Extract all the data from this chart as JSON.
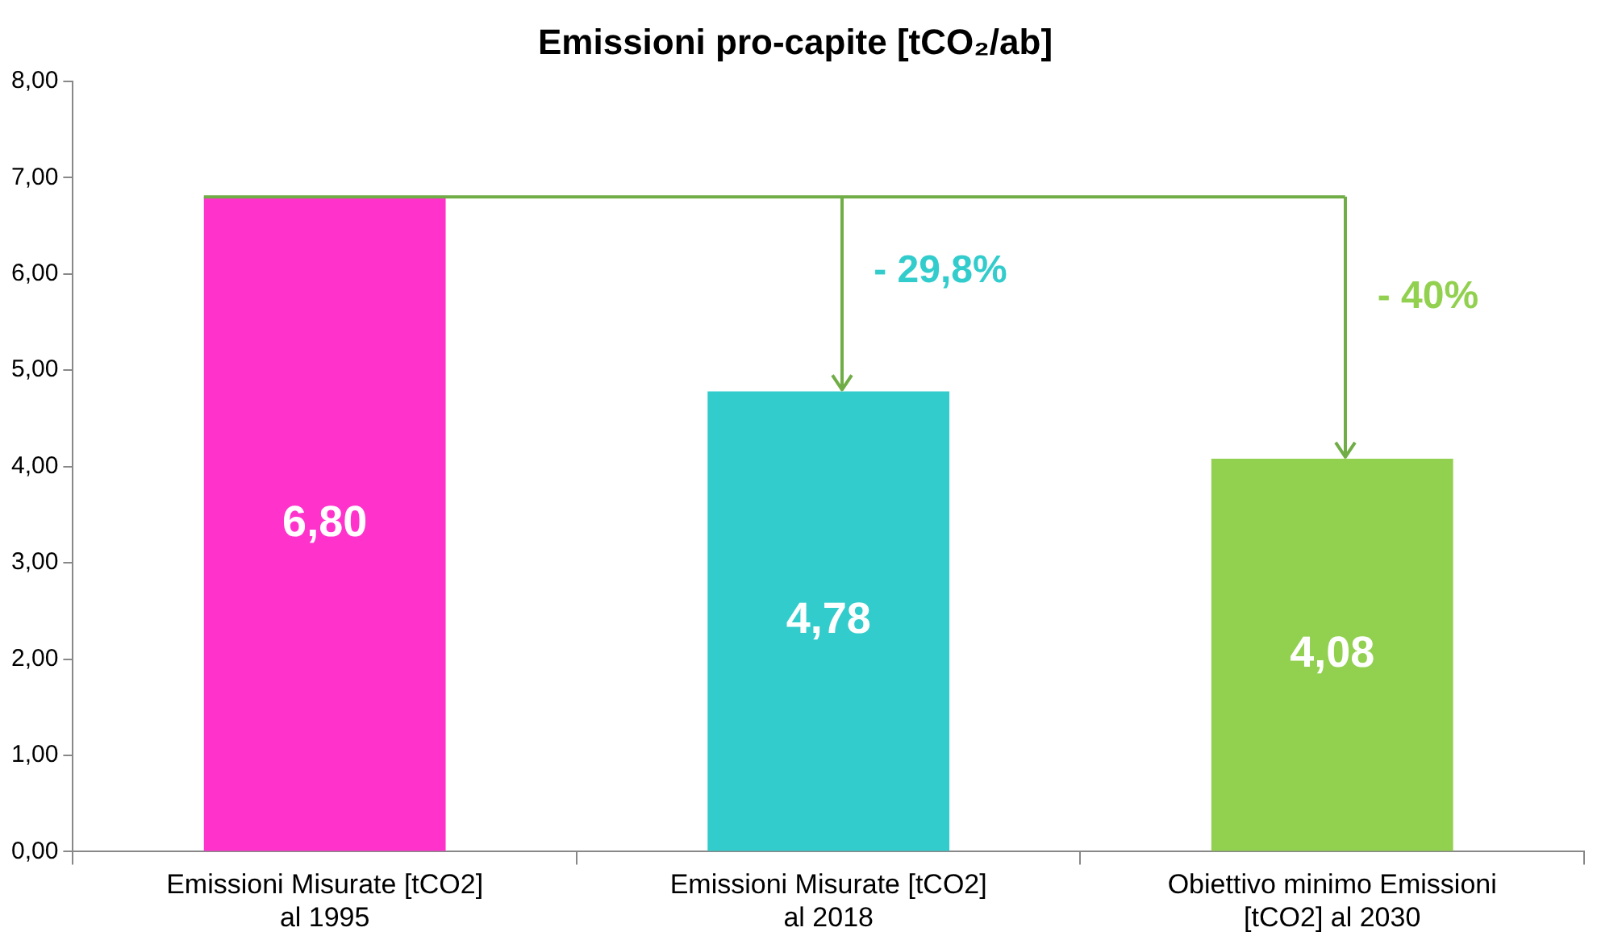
{
  "chart_data": {
    "type": "bar",
    "title": "Emissioni pro-capite [tCO₂/ab]",
    "categories": [
      "Emissioni Misurate [tCO2] al 1995",
      "Emissioni Misurate [tCO2] al 2018",
      "Obiettivo minimo Emissioni [tCO2] al 2030"
    ],
    "values": [
      6.8,
      4.78,
      4.08
    ],
    "colors": [
      "#ff33cc",
      "#33cccc",
      "#92d050"
    ],
    "value_labels": [
      "6,80",
      "4,78",
      "4,08"
    ],
    "ylim": [
      0,
      8
    ],
    "yticks": [
      {
        "value": 0,
        "label": "0,00"
      },
      {
        "value": 1,
        "label": "1,00"
      },
      {
        "value": 2,
        "label": "2,00"
      },
      {
        "value": 3,
        "label": "3,00"
      },
      {
        "value": 4,
        "label": "4,00"
      },
      {
        "value": 5,
        "label": "5,00"
      },
      {
        "value": 6,
        "label": "6,00"
      },
      {
        "value": 7,
        "label": "7,00"
      },
      {
        "value": 8,
        "label": "8,00"
      }
    ],
    "ref_lines": [
      {
        "axis": "y",
        "value": 6.8,
        "color": "#70ad47"
      }
    ],
    "annotations": [
      "- 29,8%",
      "- 40%"
    ],
    "grid": false,
    "legend": false
  }
}
